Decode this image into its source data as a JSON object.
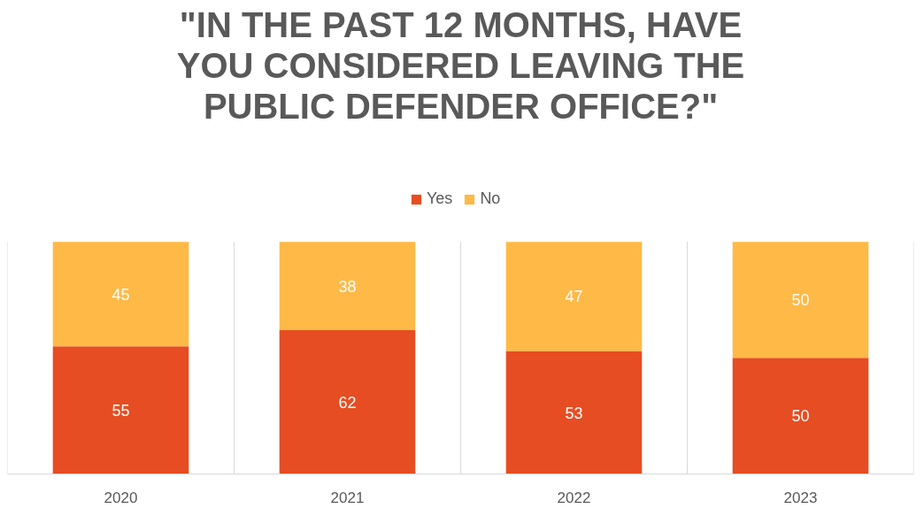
{
  "chart_data": {
    "type": "bar",
    "title": "\"IN THE PAST 12 MONTHS, HAVE YOU CONSIDERED LEAVING THE PUBLIC DEFENDER OFFICE?\"",
    "categories": [
      "2020",
      "2021",
      "2022",
      "2023"
    ],
    "series": [
      {
        "name": "Yes",
        "color": "#e64d22",
        "values": [
          55,
          62,
          53,
          50
        ]
      },
      {
        "name": "No",
        "color": "#ffb946",
        "values": [
          45,
          38,
          47,
          50
        ]
      }
    ],
    "stacked": true,
    "data_labels": true,
    "legend": "top",
    "grid": "x"
  }
}
